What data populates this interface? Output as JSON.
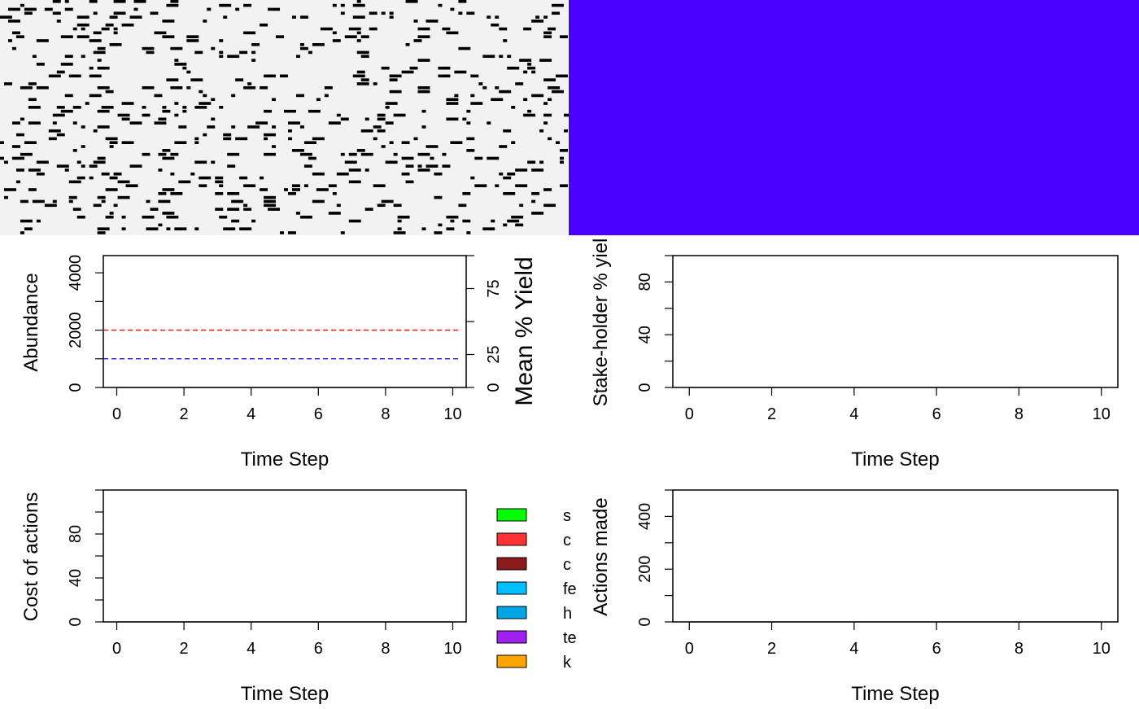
{
  "landscape_panel": {
    "type": "heatmap",
    "background_color": "#f2f2f2",
    "cell_color": "#000000",
    "seed": 7,
    "rows": 60,
    "cols": 140,
    "density": 0.07
  },
  "cost_map_panel": {
    "type": "heatmap",
    "fill_color": "#4b00ff"
  },
  "chart_data": [
    {
      "id": "abundance",
      "type": "line",
      "title": "",
      "xlabel": "Time Step",
      "ylabel": "Abundance",
      "ylabel_right": "Mean % Yield",
      "xlim": [
        -0.4,
        10.4
      ],
      "ylim": [
        0,
        4600
      ],
      "ylim_right": [
        0,
        100
      ],
      "x_ticks": [
        0,
        2,
        4,
        6,
        8,
        10
      ],
      "y_ticks": [
        0,
        2000,
        4000
      ],
      "y_minor_ticks": [
        1000,
        3000
      ],
      "y_right_ticks": [
        0,
        25,
        75
      ],
      "y_right_minor_ticks": [
        50,
        100
      ],
      "series": [],
      "reference_lines": [
        {
          "y": 2000,
          "color": "#ff0000",
          "style": "dashed"
        },
        {
          "y": 1000,
          "color": "#0000ff",
          "style": "dashed"
        }
      ]
    },
    {
      "id": "stakeholder-yield",
      "type": "line",
      "title": "",
      "xlabel": "Time Step",
      "ylabel": "Stake-holder % yiel",
      "xlim": [
        -0.4,
        10.4
      ],
      "ylim": [
        0,
        100
      ],
      "x_ticks": [
        0,
        2,
        4,
        6,
        8,
        10
      ],
      "y_ticks": [
        0,
        40,
        80
      ],
      "y_minor_ticks": [
        20,
        60,
        100
      ],
      "series": []
    },
    {
      "id": "cost-of-actions",
      "type": "line",
      "title": "",
      "xlabel": "Time Step",
      "ylabel": "Cost of actions",
      "xlim": [
        -0.4,
        10.4
      ],
      "ylim": [
        0,
        120
      ],
      "x_ticks": [
        0,
        2,
        4,
        6,
        8,
        10
      ],
      "y_ticks": [
        0,
        40,
        80
      ],
      "y_minor_ticks": [
        20,
        60,
        100,
        120
      ],
      "series": [],
      "legend": {
        "placement": "right",
        "entries": [
          {
            "label": "s",
            "color": "#00ff00"
          },
          {
            "label": "c",
            "color": "#ff3333"
          },
          {
            "label": "c",
            "color": "#8b1a1a"
          },
          {
            "label": "fe",
            "color": "#00bfff"
          },
          {
            "label": "h",
            "color": "#00a5e6"
          },
          {
            "label": "te",
            "color": "#a020f0"
          },
          {
            "label": "k",
            "color": "#ffa500"
          }
        ]
      }
    },
    {
      "id": "actions-made",
      "type": "line",
      "title": "",
      "xlabel": "Time Step",
      "ylabel": "Actions made",
      "xlim": [
        -0.4,
        10.4
      ],
      "ylim": [
        0,
        500
      ],
      "x_ticks": [
        0,
        2,
        4,
        6,
        8,
        10
      ],
      "y_ticks": [
        0,
        200,
        400
      ],
      "y_minor_ticks": [
        100,
        300,
        500
      ],
      "series": []
    }
  ]
}
